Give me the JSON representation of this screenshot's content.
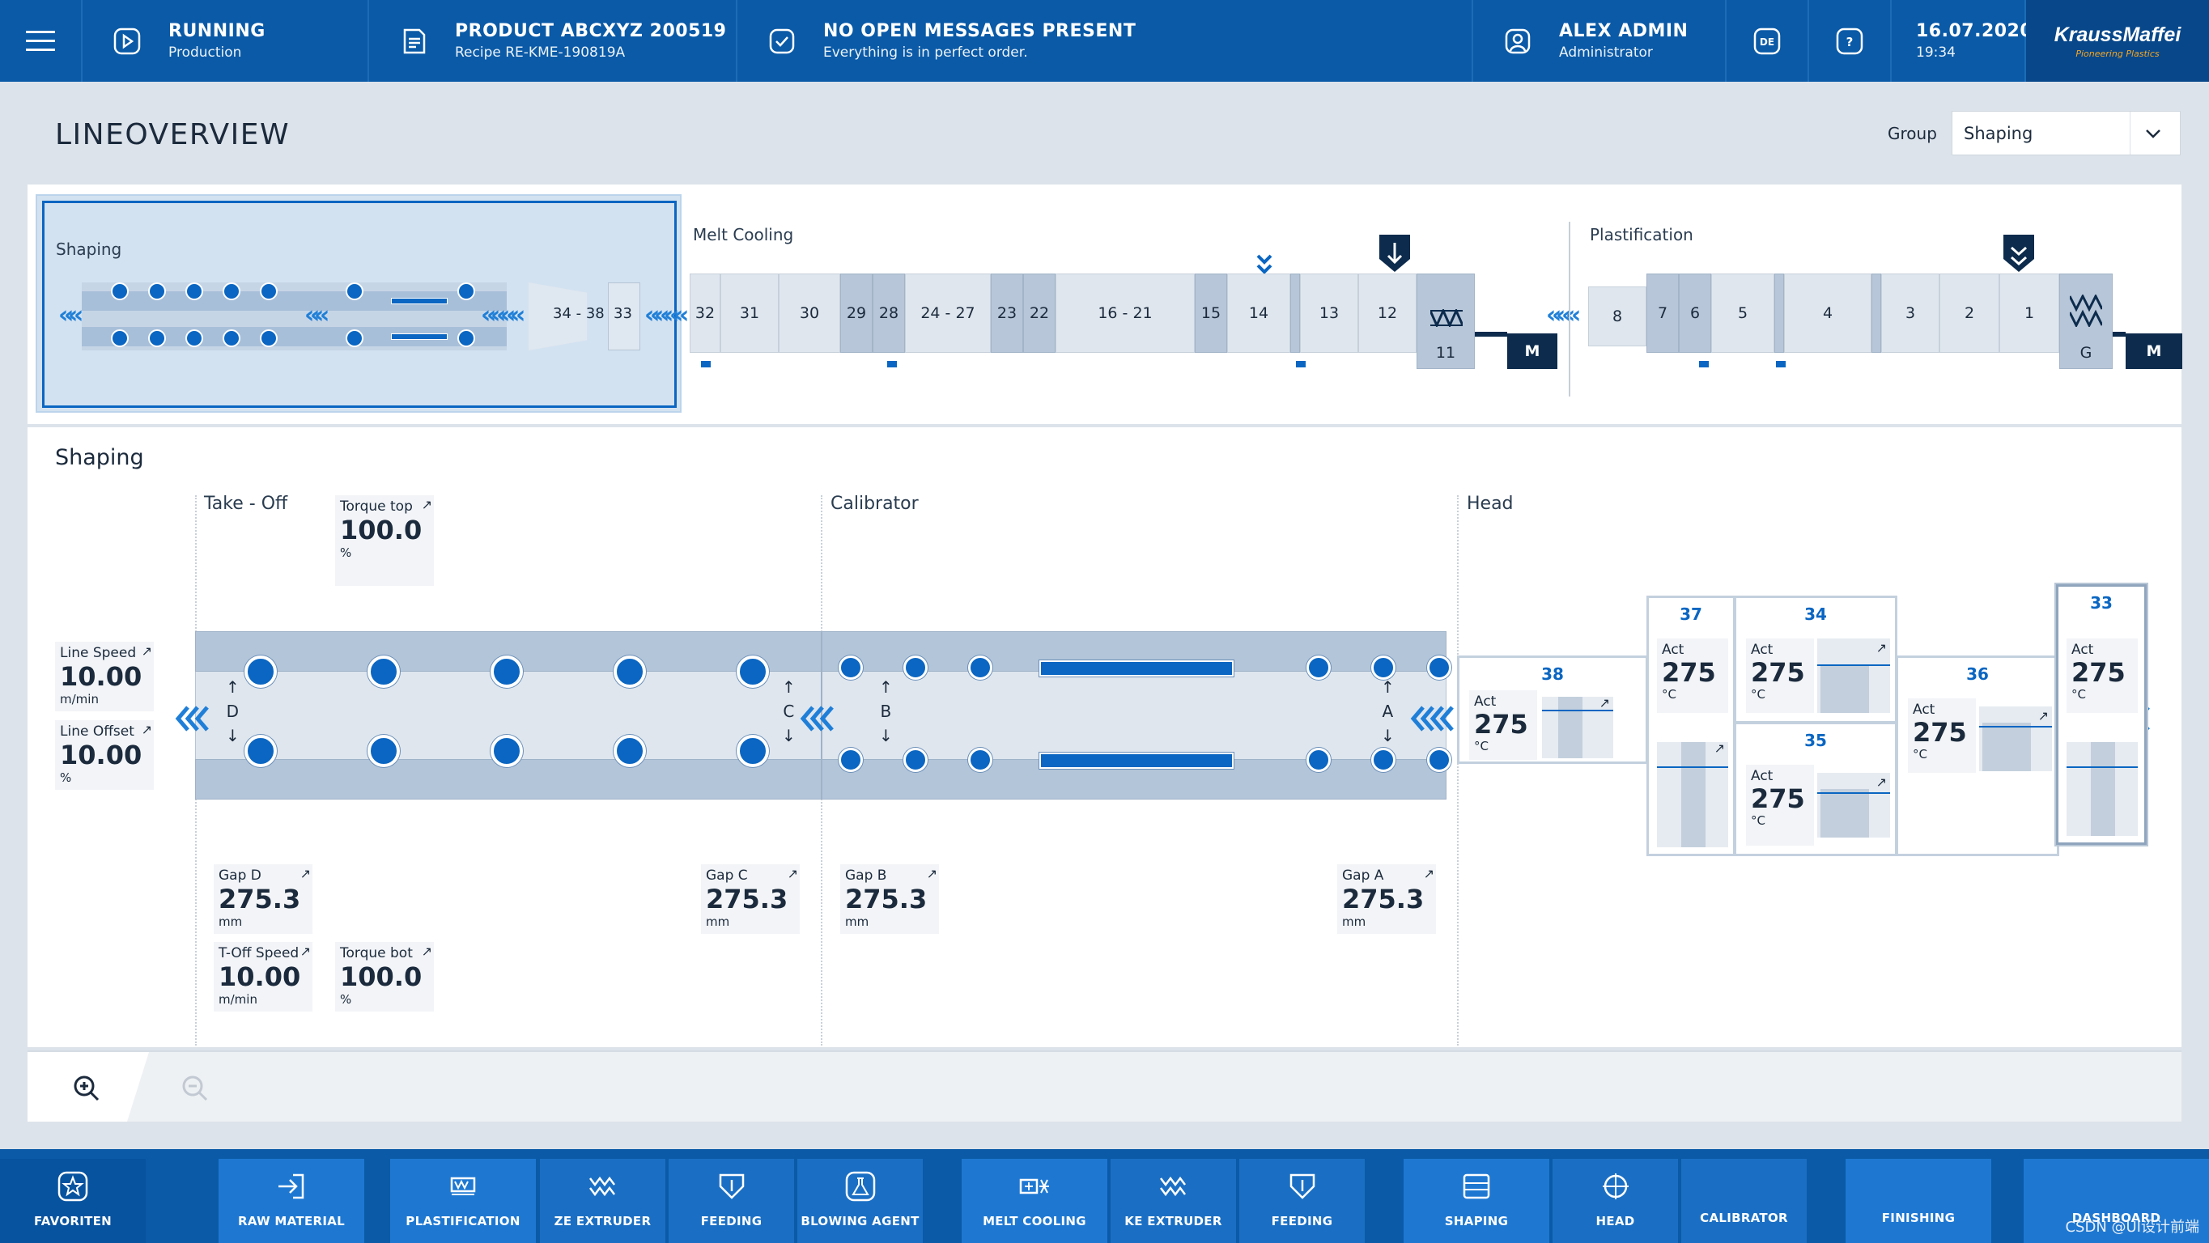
{
  "header": {
    "status_title": "RUNNING",
    "status_sub": "Production",
    "product_title": "PRODUCT ABCXYZ 200519",
    "product_sub": "Recipe RE-KME-190819A",
    "messages_title": "NO OPEN MESSAGES PRESENT",
    "messages_sub": "Everything is in perfect order.",
    "user_title": "ALEX ADMIN",
    "user_sub": "Administrator",
    "lang": "DE",
    "help": "?",
    "date": "16.07.2020",
    "time": "19:34",
    "logo_main": "KraussMaffei",
    "logo_tag": "Pioneering Plastics"
  },
  "page": {
    "title": "LINEOVERVIEW",
    "group_label": "Group",
    "group_value": "Shaping"
  },
  "overview": {
    "shaping_label": "Shaping",
    "melt_label": "Melt Cooling",
    "plast_label": "Plastification",
    "box_3438": "34 - 38",
    "box_33": "33",
    "melt_boxes": [
      "32",
      "31",
      "30",
      "29",
      "28",
      "24 - 27",
      "23",
      "22",
      "16 - 21",
      "15",
      "14",
      "13",
      "12"
    ],
    "melt_extruder": "11",
    "plast_boxes": [
      "8",
      "7",
      "6",
      "5",
      "4",
      "3",
      "2",
      "1"
    ],
    "plast_extruder": "G",
    "motor": "M"
  },
  "detail": {
    "title": "Shaping",
    "takeoff": "Take - Off",
    "calibrator": "Calibrator",
    "head": "Head",
    "torque_top": {
      "label": "Torque top",
      "value": "100.0",
      "unit": "%"
    },
    "line_speed": {
      "label": "Line Speed",
      "value": "10.00",
      "unit": "m/min"
    },
    "line_offset": {
      "label": "Line Offset",
      "value": "10.00",
      "unit": "%"
    },
    "gap_d": {
      "label": "Gap D",
      "value": "275.3",
      "unit": "mm"
    },
    "gap_c": {
      "label": "Gap C",
      "value": "275.3",
      "unit": "mm"
    },
    "gap_b": {
      "label": "Gap B",
      "value": "275.3",
      "unit": "mm"
    },
    "gap_a": {
      "label": "Gap A",
      "value": "275.3",
      "unit": "mm"
    },
    "toff_speed": {
      "label": "T-Off Speed",
      "value": "10.00",
      "unit": "m/min"
    },
    "torque_bot": {
      "label": "Torque bot",
      "value": "100.0",
      "unit": "%"
    },
    "letters": [
      "D",
      "C",
      "B",
      "A"
    ],
    "zones": [
      {
        "id": "38",
        "act": "Act",
        "value": "275",
        "unit": "°C"
      },
      {
        "id": "37",
        "act": "Act",
        "value": "275",
        "unit": "°C"
      },
      {
        "id": "34",
        "act": "Act",
        "value": "275",
        "unit": "°C"
      },
      {
        "id": "35",
        "act": "Act",
        "value": "275",
        "unit": "°C"
      },
      {
        "id": "36",
        "act": "Act",
        "value": "275",
        "unit": "°C"
      },
      {
        "id": "33",
        "act": "Act",
        "value": "275",
        "unit": "°C"
      }
    ]
  },
  "nav": {
    "favoriten": "FAVORITEN",
    "raw": "RAW MATERIAL",
    "plast": "PLASTIFICATION",
    "ze": "ZE EXTRUDER",
    "feed1": "FEEDING",
    "blow": "BLOWING AGENT",
    "melt": "MELT COOLING",
    "ke": "KE EXTRUDER",
    "feed2": "FEEDING",
    "shaping": "SHAPING",
    "head": "HEAD",
    "calib": "CALIBRATOR",
    "finish": "FINISHING",
    "dash": "DASHBOARD"
  },
  "watermark": "CSDN @UI设计前端"
}
